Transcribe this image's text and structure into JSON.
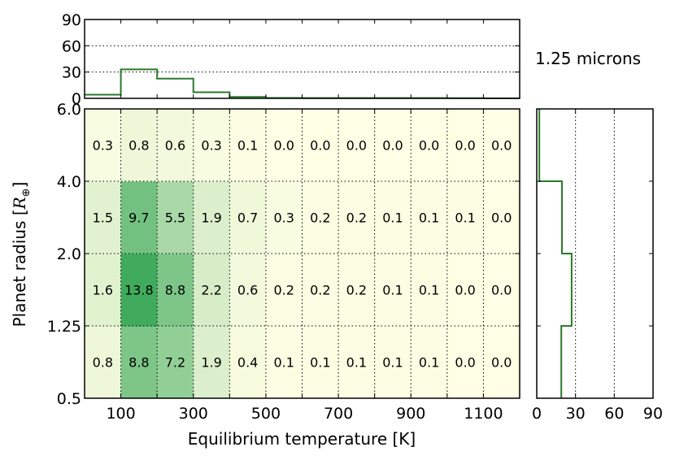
{
  "chart_data": {
    "type": "heatmap",
    "annotation": "1.25 microns",
    "xlabel": "Equilibrium temperature [K]",
    "ylabel": "Planet radius [R⊕]",
    "ylabel_text": "Planet radius [",
    "ylabel_symbol": "R",
    "ylabel_subscript": "⊕",
    "ylabel_close": "]",
    "x_tick_labels": [
      "100",
      "300",
      "500",
      "700",
      "900",
      "1100"
    ],
    "y_tick_labels": [
      "0.5",
      "1.25",
      "2.0",
      "4.0",
      "6.0"
    ],
    "x_bins": [
      0,
      100,
      200,
      300,
      400,
      500,
      600,
      700,
      800,
      900,
      1000,
      1100,
      1200
    ],
    "y_bin_labels": [
      "0.5",
      "1.25",
      "2.0",
      "4.0",
      "6.0"
    ],
    "grid": true,
    "cells": [
      [
        0.8,
        8.8,
        7.2,
        1.9,
        0.4,
        0.1,
        0.1,
        0.1,
        0.1,
        0.1,
        0.0,
        0.0
      ],
      [
        1.6,
        13.8,
        8.8,
        2.2,
        0.6,
        0.2,
        0.2,
        0.2,
        0.1,
        0.1,
        0.0,
        0.0
      ],
      [
        1.5,
        9.7,
        5.5,
        1.9,
        0.7,
        0.3,
        0.2,
        0.2,
        0.1,
        0.1,
        0.1,
        0.0
      ],
      [
        0.3,
        0.8,
        0.6,
        0.3,
        0.1,
        0.0,
        0.0,
        0.0,
        0.0,
        0.0,
        0.0,
        0.0
      ]
    ],
    "top_histogram": {
      "values": [
        4.2,
        33.0,
        22.5,
        7.0,
        1.6,
        0.5,
        0.4,
        0.4,
        0.3,
        0.3,
        0.2,
        0.0
      ],
      "ylim": [
        0,
        90
      ],
      "tick_labels": [
        "0",
        "30",
        "60",
        "90"
      ]
    },
    "right_histogram": {
      "values": [
        19.0,
        27.0,
        19.5,
        2.0
      ],
      "xlim": [
        0,
        90
      ],
      "tick_labels": [
        "0",
        "30",
        "60",
        "90"
      ]
    },
    "colors": {
      "low": "#ffffe5",
      "high": "#41ab5d",
      "histogram": "#2a7a2a"
    }
  }
}
